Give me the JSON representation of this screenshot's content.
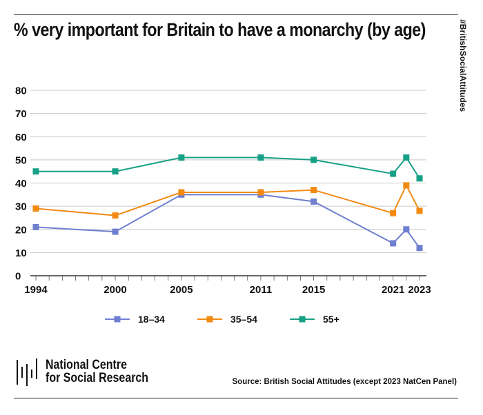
{
  "header": {
    "title": "% very important for Britain to have a monarchy (by age)",
    "hashtag": "#BritishSocialAttitudes"
  },
  "chart_data": {
    "type": "line",
    "title": "% very important for Britain to have a monarchy (by age)",
    "xlabel": "",
    "ylabel": "",
    "ylim": [
      0,
      80
    ],
    "yticks": [
      0,
      10,
      20,
      30,
      40,
      50,
      60,
      70,
      80
    ],
    "xlim": [
      1994,
      2023
    ],
    "x": [
      1994,
      2000,
      2005,
      2011,
      2015,
      2021,
      2022,
      2023
    ],
    "xtick_labels": [
      "1994",
      "2000",
      "2005",
      "2011",
      "2015",
      "2021",
      "2023"
    ],
    "xtick_values": [
      1994,
      2000,
      2005,
      2011,
      2015,
      2021,
      2023
    ],
    "grid": true,
    "legend_position": "bottom",
    "series": [
      {
        "name": "18–34",
        "color": "#6f7fd0",
        "values": [
          21,
          19,
          35,
          35,
          32,
          14,
          20,
          12
        ]
      },
      {
        "name": "35–54",
        "color": "#f28a12",
        "values": [
          29,
          26,
          36,
          36,
          37,
          27,
          39,
          28
        ]
      },
      {
        "name": "55+",
        "color": "#16a085",
        "values": [
          45,
          45,
          51,
          51,
          50,
          44,
          51,
          42
        ]
      }
    ]
  },
  "footer": {
    "logo_line1": "National Centre",
    "logo_line2": "for Social Research",
    "source": "Source: British Social Attitudes (except 2023 NatCen Panel)"
  }
}
